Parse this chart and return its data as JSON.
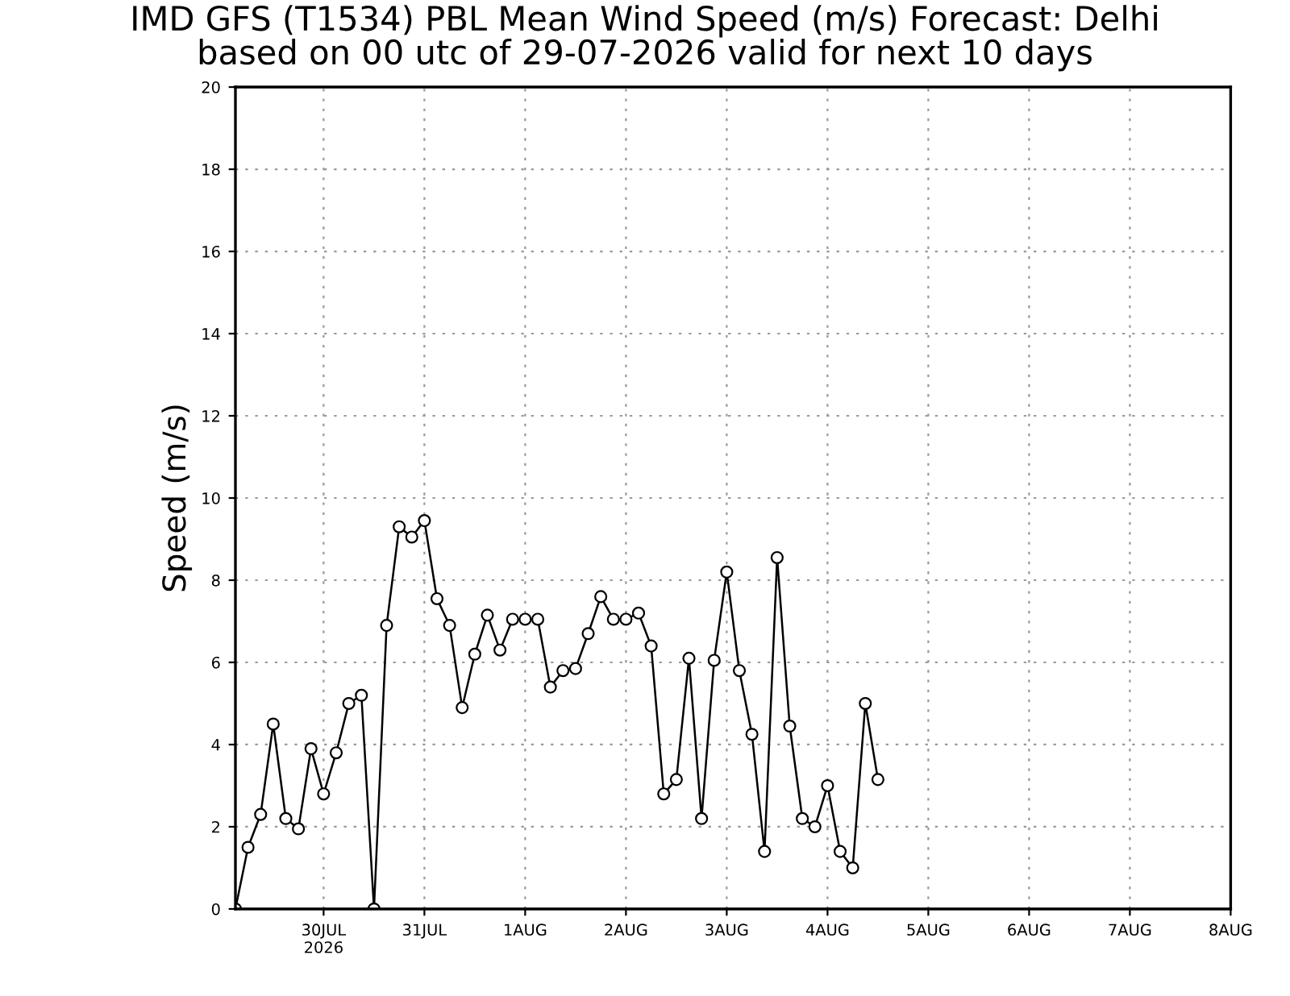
{
  "chart_data": {
    "type": "line",
    "title": "IMD GFS (T1534) PBL Mean Wind Speed (m/s) Forecast: Delhi\nbased on 00 utc of 29-07-2026 valid for next 10 days",
    "ylabel": "Speed (m/s)",
    "x": [
      "2026-07-29T03:00",
      "2026-07-29T06:00",
      "2026-07-29T09:00",
      "2026-07-29T12:00",
      "2026-07-29T15:00",
      "2026-07-29T18:00",
      "2026-07-29T21:00",
      "2026-07-30T00:00",
      "2026-07-30T03:00",
      "2026-07-30T06:00",
      "2026-07-30T09:00",
      "2026-07-30T12:00",
      "2026-07-30T15:00",
      "2026-07-30T18:00",
      "2026-07-30T21:00",
      "2026-07-31T00:00",
      "2026-07-31T03:00",
      "2026-07-31T06:00",
      "2026-07-31T09:00",
      "2026-07-31T12:00",
      "2026-07-31T15:00",
      "2026-07-31T18:00",
      "2026-07-31T21:00",
      "2026-08-01T00:00",
      "2026-08-01T03:00",
      "2026-08-01T06:00",
      "2026-08-01T09:00",
      "2026-08-01T12:00",
      "2026-08-01T15:00",
      "2026-08-01T18:00",
      "2026-08-01T21:00",
      "2026-08-02T00:00",
      "2026-08-02T03:00",
      "2026-08-02T06:00",
      "2026-08-02T09:00",
      "2026-08-02T12:00",
      "2026-08-02T15:00",
      "2026-08-02T18:00",
      "2026-08-02T21:00",
      "2026-08-03T00:00",
      "2026-08-03T03:00",
      "2026-08-03T06:00",
      "2026-08-03T09:00",
      "2026-08-03T12:00",
      "2026-08-03T15:00",
      "2026-08-03T18:00",
      "2026-08-03T21:00",
      "2026-08-04T00:00",
      "2026-08-04T03:00",
      "2026-08-04T06:00",
      "2026-08-04T09:00",
      "2026-08-04T12:00"
    ],
    "series": [
      {
        "color": "#000000",
        "values": [
          0,
          1.5,
          2.3,
          4.5,
          2.2,
          1.95,
          3.9,
          2.8,
          3.8,
          5.0,
          5.2,
          0,
          6.9,
          9.3,
          9.05,
          9.45,
          7.55,
          6.9,
          4.9,
          6.2,
          7.15,
          6.3,
          7.05,
          7.05,
          7.05,
          5.4,
          5.8,
          5.85,
          6.7,
          7.6,
          7.05,
          7.05,
          7.2,
          6.4,
          2.8,
          3.15,
          6.1,
          2.2,
          6.05,
          8.2,
          5.8,
          4.25,
          1.4,
          8.55,
          4.45,
          2.2,
          2.0,
          3.0,
          1.4,
          1.0,
          5.0,
          3.15
        ]
      }
    ],
    "xlim": [
      "2026-07-29T03:00",
      "2026-08-08T00:00"
    ],
    "xticks": [
      {
        "value": "2026-07-30",
        "label": "30JUL\n2026"
      },
      {
        "value": "2026-07-31",
        "label": "31JUL"
      },
      {
        "value": "2026-08-01",
        "label": "1AUG"
      },
      {
        "value": "2026-08-02",
        "label": "2AUG"
      },
      {
        "value": "2026-08-03",
        "label": "3AUG"
      },
      {
        "value": "2026-08-04",
        "label": "4AUG"
      },
      {
        "value": "2026-08-05",
        "label": "5AUG"
      },
      {
        "value": "2026-08-06",
        "label": "6AUG"
      },
      {
        "value": "2026-08-07",
        "label": "7AUG"
      },
      {
        "value": "2026-08-08",
        "label": "8AUG"
      }
    ],
    "ylim": [
      0,
      20
    ],
    "yticks": [
      0,
      2,
      4,
      6,
      8,
      10,
      12,
      14,
      16,
      18,
      20
    ],
    "grid": true,
    "marker": "circle",
    "line_style": "solid"
  }
}
